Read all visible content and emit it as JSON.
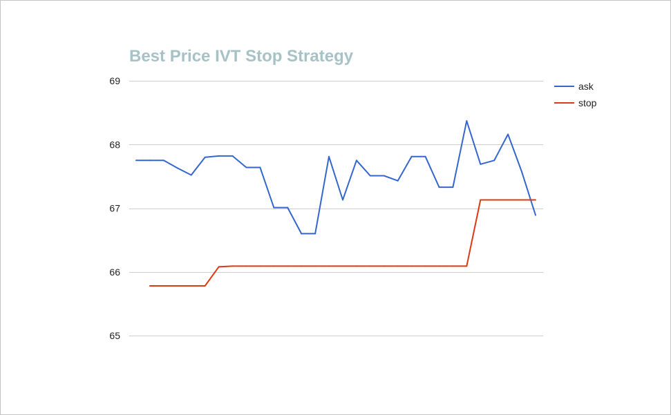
{
  "chart_data": {
    "type": "line",
    "title": "Best Price IVT Stop Strategy",
    "xlabel": "",
    "ylabel": "",
    "ylim": [
      65,
      69
    ],
    "yticks": [
      65,
      66,
      67,
      68,
      69
    ],
    "grid": true,
    "legend_position": "right",
    "x": [
      1,
      2,
      3,
      4,
      5,
      6,
      7,
      8,
      9,
      10,
      11,
      12,
      13,
      14,
      15,
      16,
      17,
      18,
      19,
      20,
      21,
      22,
      23,
      24,
      25,
      26,
      27,
      28,
      29,
      30
    ],
    "series": [
      {
        "name": "ask",
        "color": "#3366cc",
        "values": [
          67.75,
          67.75,
          67.75,
          67.63,
          67.52,
          67.8,
          67.82,
          67.82,
          67.64,
          67.64,
          67.01,
          67.01,
          66.6,
          66.6,
          67.81,
          67.13,
          67.75,
          67.51,
          67.51,
          67.43,
          67.81,
          67.81,
          67.33,
          67.33,
          68.37,
          67.69,
          67.75,
          68.16,
          67.57,
          66.89
        ]
      },
      {
        "name": "stop",
        "color": "#dc3912",
        "values": [
          null,
          65.78,
          65.78,
          65.78,
          65.78,
          65.78,
          66.08,
          66.09,
          66.09,
          66.09,
          66.09,
          66.09,
          66.09,
          66.09,
          66.09,
          66.09,
          66.09,
          66.09,
          66.09,
          66.09,
          66.09,
          66.09,
          66.09,
          66.09,
          66.09,
          67.13,
          67.13,
          67.13,
          67.13,
          67.13
        ]
      }
    ]
  }
}
